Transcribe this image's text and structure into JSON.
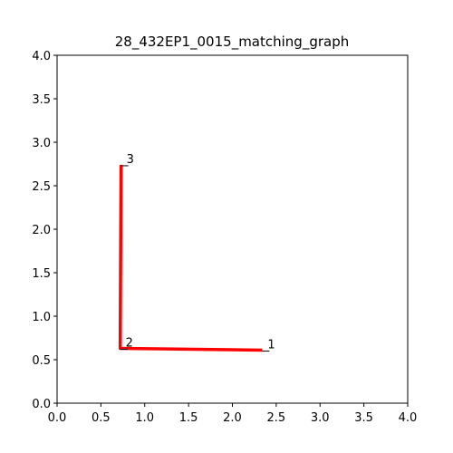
{
  "chart_data": {
    "type": "line",
    "title": "28_432EP1_0015_matching_graph",
    "xlabel": "",
    "ylabel": "",
    "xlim": [
      0.0,
      4.0
    ],
    "ylim": [
      0.0,
      4.0
    ],
    "x_ticks": [
      "0.0",
      "0.5",
      "1.0",
      "1.5",
      "2.0",
      "2.5",
      "3.0",
      "3.5",
      "4.0"
    ],
    "y_ticks": [
      "0.0",
      "0.5",
      "1.0",
      "1.5",
      "2.0",
      "2.5",
      "3.0",
      "3.5",
      "4.0"
    ],
    "grid": false,
    "series": [
      {
        "color": "#ff0000",
        "points": [
          {
            "label": "1",
            "x": 2.34,
            "y": 0.61
          },
          {
            "label": "2",
            "x": 0.72,
            "y": 0.63
          },
          {
            "label": "3",
            "x": 0.73,
            "y": 2.74
          }
        ]
      }
    ]
  }
}
